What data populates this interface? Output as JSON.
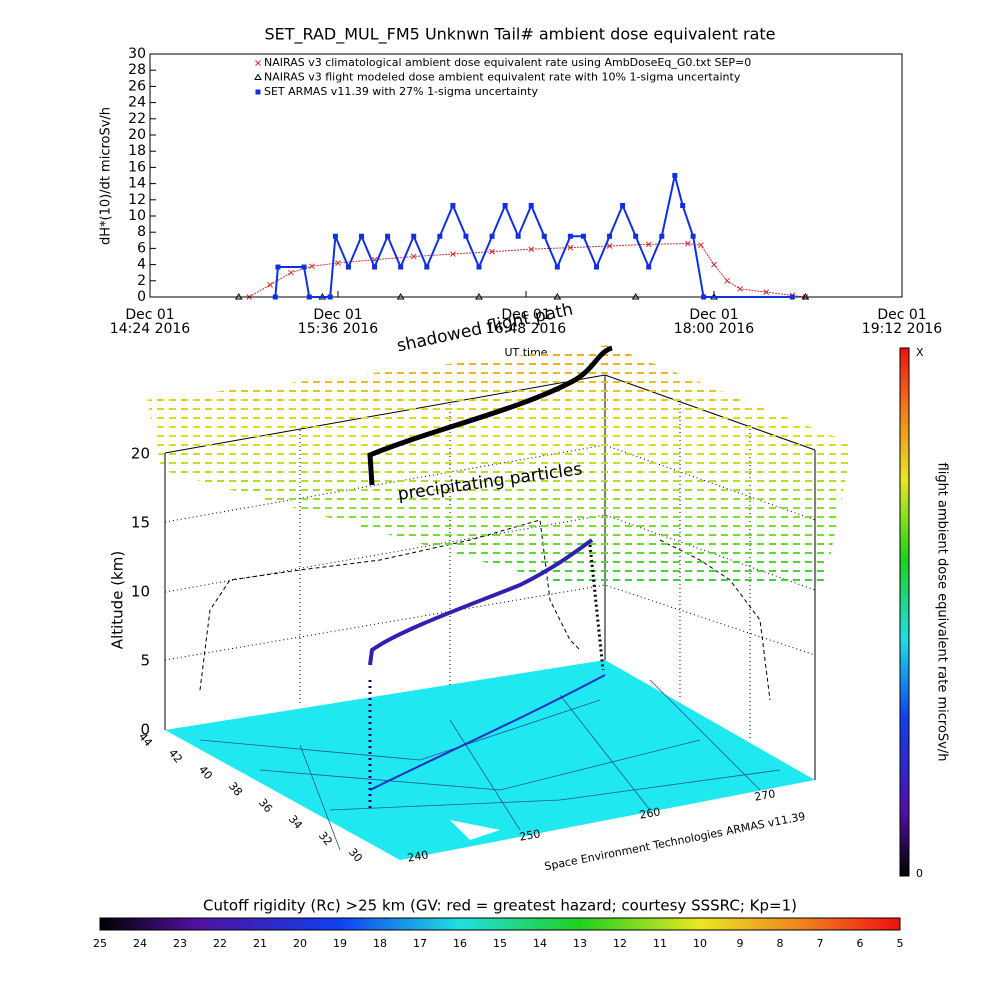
{
  "chart_data": {
    "type": "line",
    "title": "SET_RAD_MUL_FM5 Unknwn Tail#  ambient dose equivalent rate",
    "x_label": "UT time",
    "y_label": "dH*(10)/dt microSv/h",
    "xlim": [
      "2016-12-01T14:24",
      "2016-12-01T19:12"
    ],
    "xticks": [
      {
        "value": "2016-12-01T14:24",
        "label": [
          "Dec 01",
          "14:24 2016"
        ]
      },
      {
        "value": "2016-12-01T15:36",
        "label": [
          "Dec 01",
          "15:36 2016"
        ]
      },
      {
        "value": "2016-12-01T16:48",
        "label": [
          "Dec 01",
          "16:48 2016"
        ]
      },
      {
        "value": "2016-12-01T18:00",
        "label": [
          "Dec 01",
          "18:00 2016"
        ]
      },
      {
        "value": "2016-12-01T19:12",
        "label": [
          "Dec 01",
          "19:12 2016"
        ]
      }
    ],
    "ylim": [
      0,
      30
    ],
    "yticks": [
      0,
      2,
      4,
      6,
      8,
      10,
      12,
      14,
      16,
      18,
      20,
      22,
      24,
      26,
      28,
      30
    ],
    "series": [
      {
        "name": "NAIRAS v3 climatological ambient dose equivalent rate using AmbDoseEq_G0.txt SEP=0",
        "color": "#d03030",
        "marker": "x",
        "x": [
          "2016-12-01T15:02",
          "2016-12-01T15:10",
          "2016-12-01T15:18",
          "2016-12-01T15:26",
          "2016-12-01T15:36",
          "2016-12-01T15:50",
          "2016-12-01T16:05",
          "2016-12-01T16:20",
          "2016-12-01T16:35",
          "2016-12-01T16:50",
          "2016-12-01T17:05",
          "2016-12-01T17:20",
          "2016-12-01T17:35",
          "2016-12-01T17:50",
          "2016-12-01T17:55",
          "2016-12-01T18:00",
          "2016-12-01T18:05",
          "2016-12-01T18:10",
          "2016-12-01T18:20",
          "2016-12-01T18:30",
          "2016-12-01T18:35"
        ],
        "values": [
          0,
          1.5,
          3,
          3.8,
          4.2,
          4.6,
          5,
          5.3,
          5.6,
          5.9,
          6.1,
          6.3,
          6.5,
          6.6,
          6.4,
          4,
          2,
          1,
          0.6,
          0.2,
          0
        ]
      },
      {
        "name": "NAIRAS v3 flight modeled dose ambient equivalent rate with 10% 1-sigma uncertainty",
        "color": "#000000",
        "marker": "triangle",
        "x": [
          "2016-12-01T14:58",
          "2016-12-01T15:30",
          "2016-12-01T16:00",
          "2016-12-01T16:30",
          "2016-12-01T17:00",
          "2016-12-01T17:30",
          "2016-12-01T18:00",
          "2016-12-01T18:35"
        ],
        "values": [
          0,
          0,
          0,
          0,
          0,
          0,
          0,
          0
        ]
      },
      {
        "name": "SET ARMAS v11.39 with 27% 1-sigma uncertainty",
        "color": "#1030e0",
        "marker": "square",
        "x": [
          "2016-12-01T15:12",
          "2016-12-01T15:13",
          "2016-12-01T15:23",
          "2016-12-01T15:25",
          "2016-12-01T15:33",
          "2016-12-01T15:35",
          "2016-12-01T15:40",
          "2016-12-01T15:45",
          "2016-12-01T15:50",
          "2016-12-01T15:55",
          "2016-12-01T16:00",
          "2016-12-01T16:05",
          "2016-12-01T16:10",
          "2016-12-01T16:15",
          "2016-12-01T16:20",
          "2016-12-01T16:25",
          "2016-12-01T16:30",
          "2016-12-01T16:35",
          "2016-12-01T16:40",
          "2016-12-01T16:45",
          "2016-12-01T16:50",
          "2016-12-01T16:55",
          "2016-12-01T17:00",
          "2016-12-01T17:05",
          "2016-12-01T17:10",
          "2016-12-01T17:15",
          "2016-12-01T17:20",
          "2016-12-01T17:25",
          "2016-12-01T17:30",
          "2016-12-01T17:35",
          "2016-12-01T17:40",
          "2016-12-01T17:45",
          "2016-12-01T17:48",
          "2016-12-01T17:52",
          "2016-12-01T17:56",
          "2016-12-01T18:30"
        ],
        "values": [
          0,
          3.7,
          3.7,
          0,
          0,
          7.5,
          3.7,
          7.5,
          3.7,
          7.5,
          3.7,
          7.5,
          3.7,
          7.5,
          11.3,
          7.5,
          3.7,
          7.5,
          11.3,
          7.5,
          11.3,
          7.5,
          3.7,
          7.5,
          7.5,
          3.7,
          7.5,
          11.3,
          7.5,
          3.7,
          7.5,
          15,
          11.3,
          7.5,
          0,
          0
        ]
      }
    ]
  },
  "scene": {
    "annotations": {
      "shadow": "shadowed flight path",
      "particles": "precipitating particles"
    },
    "altitude_axis": {
      "label": "Altitude (km)",
      "ticks": [
        "0",
        "5",
        "10",
        "15",
        "20"
      ]
    },
    "latitude_ticks": [
      "44",
      "42",
      "40",
      "38",
      "36",
      "34",
      "32",
      "30"
    ],
    "longitude_ticks": [
      "240",
      "250",
      "260",
      "270"
    ],
    "credit": "Space Environment Technologies ARMAS v11.39",
    "dose_colorbar": {
      "label": "flight ambient dose equivalent rate microSv/h",
      "max_label": "X",
      "min_label": "0"
    },
    "rigidity_colorbar": {
      "title": "Cutoff rigidity (Rc) >25 km (GV: red = greatest hazard; courtesy SSSRC; Kp=1)",
      "labels": [
        "25",
        "24",
        "23",
        "22",
        "21",
        "20",
        "19",
        "18",
        "17",
        "16",
        "15",
        "14",
        "13",
        "12",
        "11",
        "10",
        "9",
        "8",
        "7",
        "6",
        "5"
      ]
    }
  }
}
